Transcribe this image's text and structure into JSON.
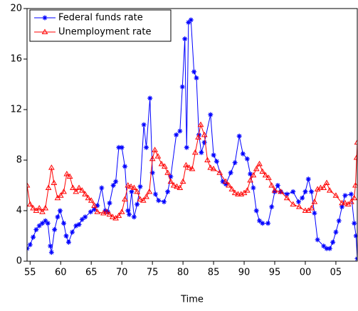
{
  "chart_data": {
    "type": "line",
    "x_label": "Time",
    "xlim": [
      1954.5,
      2008.5
    ],
    "xticks": [
      {
        "value": 1955,
        "label": "55"
      },
      {
        "value": 1960,
        "label": "60"
      },
      {
        "value": 1965,
        "label": "65"
      },
      {
        "value": 1970,
        "label": "70"
      },
      {
        "value": 1975,
        "label": "75"
      },
      {
        "value": 1980,
        "label": "80"
      },
      {
        "value": 1985,
        "label": "85"
      },
      {
        "value": 1990,
        "label": "90"
      },
      {
        "value": 1995,
        "label": "95"
      },
      {
        "value": 2000,
        "label": "00"
      },
      {
        "value": 2005,
        "label": "05"
      }
    ],
    "ylim": [
      0,
      20
    ],
    "yticks": [
      0,
      4,
      8,
      12,
      16,
      20
    ],
    "legend": "top-left",
    "series": [
      {
        "name": "Federal funds rate",
        "color": "#0000ff",
        "marker": "asterisk",
        "x": [
          1954.5,
          1955,
          1955.5,
          1956,
          1956.5,
          1957,
          1957.5,
          1957.9,
          1958.3,
          1958.5,
          1959,
          1959.5,
          1959.9,
          1960.5,
          1960.9,
          1961.3,
          1961.9,
          1962.5,
          1963,
          1963.5,
          1964,
          1964.9,
          1965.5,
          1966,
          1966.7,
          1967.3,
          1967.7,
          1968,
          1968.6,
          1969,
          1969.5,
          1970,
          1970.5,
          1971,
          1971.2,
          1971.6,
          1972,
          1972.5,
          1973,
          1973.6,
          1974,
          1974.6,
          1975,
          1975.5,
          1976,
          1976.9,
          1977.5,
          1978,
          1978.9,
          1979.5,
          1979.9,
          1980.3,
          1980.6,
          1980.9,
          1981.3,
          1981.8,
          1982.2,
          1982.6,
          1983,
          1983.5,
          1984.5,
          1985,
          1985.5,
          1986.5,
          1987,
          1987.8,
          1988.5,
          1989.2,
          1989.8,
          1990.5,
          1991,
          1991.5,
          1992,
          1992.5,
          1993,
          1993.9,
          1994.5,
          1995,
          1995.5,
          1996,
          1997,
          1998,
          1998.9,
          1999.5,
          2000,
          2000.5,
          2001,
          2001.5,
          2002,
          2003,
          2003.5,
          2004,
          2004.5,
          2005,
          2005.5,
          2006,
          2006.5,
          2007.5,
          2008,
          2008.3,
          2008.5
        ],
        "values": [
          1.0,
          1.3,
          1.9,
          2.5,
          2.8,
          3.0,
          3.2,
          3.0,
          1.2,
          0.7,
          2.5,
          3.5,
          4.0,
          3.0,
          2.0,
          1.5,
          2.3,
          2.8,
          2.9,
          3.3,
          3.5,
          3.9,
          4.1,
          4.4,
          5.8,
          4.0,
          3.9,
          4.6,
          6.0,
          6.3,
          9.0,
          9.0,
          7.5,
          4.0,
          3.7,
          5.5,
          3.5,
          4.5,
          5.9,
          10.8,
          9.0,
          12.9,
          7.0,
          5.3,
          4.8,
          4.7,
          5.5,
          6.7,
          10.0,
          10.3,
          13.8,
          17.6,
          9.0,
          18.9,
          19.1,
          15.0,
          14.5,
          10.0,
          8.6,
          9.4,
          11.6,
          8.4,
          7.9,
          6.3,
          6.1,
          7.0,
          7.8,
          9.9,
          8.5,
          8.1,
          6.9,
          5.8,
          4.0,
          3.2,
          3.0,
          3.0,
          4.3,
          5.5,
          6.0,
          5.5,
          5.3,
          5.5,
          4.7,
          5.0,
          5.5,
          6.5,
          5.5,
          3.8,
          1.7,
          1.2,
          1.0,
          1.0,
          1.5,
          2.3,
          3.2,
          4.3,
          5.2,
          5.3,
          3.0,
          2.0,
          0.2
        ]
      },
      {
        "name": "Unemployment rate",
        "color": "#ff0000",
        "marker": "triangle",
        "x": [
          1954.5,
          1955,
          1955.5,
          1956,
          1956.5,
          1957,
          1957.5,
          1958,
          1958.5,
          1958.9,
          1959.5,
          1960,
          1960.5,
          1961,
          1961.5,
          1962,
          1962.5,
          1963,
          1963.5,
          1964,
          1964.5,
          1965,
          1965.5,
          1966,
          1967,
          1967.5,
          1968,
          1968.5,
          1969,
          1969.5,
          1970,
          1970.5,
          1971,
          1971.5,
          1972,
          1972.5,
          1973,
          1973.5,
          1974,
          1974.5,
          1975,
          1975.4,
          1975.9,
          1976.5,
          1977,
          1977.5,
          1978,
          1978.5,
          1979,
          1979.5,
          1980,
          1980.5,
          1981,
          1981.5,
          1982,
          1982.5,
          1982.9,
          1983.5,
          1984,
          1984.5,
          1985,
          1986,
          1987,
          1987.5,
          1988,
          1988.5,
          1989,
          1989.5,
          1990,
          1990.5,
          1991,
          1991.5,
          1992,
          1992.5,
          1993,
          1993.5,
          1994,
          1994.5,
          1995,
          1996,
          1997,
          1998,
          1999,
          2000,
          2000.5,
          2001,
          2001.5,
          2002,
          2002.5,
          2003,
          2003.5,
          2004,
          2005,
          2006,
          2006.5,
          2007,
          2007.5,
          2008,
          2008.2,
          2008.4,
          2008.5
        ],
        "values": [
          6.0,
          4.5,
          4.2,
          4.0,
          4.2,
          3.9,
          4.2,
          5.8,
          7.4,
          6.2,
          5.0,
          5.2,
          5.5,
          6.9,
          6.7,
          5.8,
          5.5,
          5.8,
          5.6,
          5.3,
          5.0,
          4.8,
          4.4,
          3.9,
          3.8,
          3.9,
          3.7,
          3.5,
          3.4,
          3.6,
          3.9,
          4.9,
          6.0,
          5.9,
          5.8,
          5.5,
          4.9,
          4.8,
          5.1,
          5.5,
          8.1,
          8.8,
          8.3,
          7.7,
          7.5,
          7.0,
          6.3,
          6.0,
          5.9,
          5.8,
          6.3,
          7.6,
          7.4,
          7.3,
          8.6,
          9.8,
          10.8,
          10.0,
          8.0,
          7.4,
          7.3,
          7.0,
          6.3,
          6.0,
          5.7,
          5.4,
          5.3,
          5.3,
          5.4,
          5.6,
          6.4,
          6.8,
          7.3,
          7.7,
          7.1,
          6.8,
          6.6,
          6.0,
          5.6,
          5.5,
          5.0,
          4.5,
          4.3,
          4.0,
          4.0,
          4.2,
          4.7,
          5.7,
          5.8,
          5.8,
          6.2,
          5.6,
          5.2,
          4.6,
          4.6,
          4.5,
          4.7,
          5.0,
          6.0,
          8.2,
          9.4
        ]
      }
    ]
  }
}
